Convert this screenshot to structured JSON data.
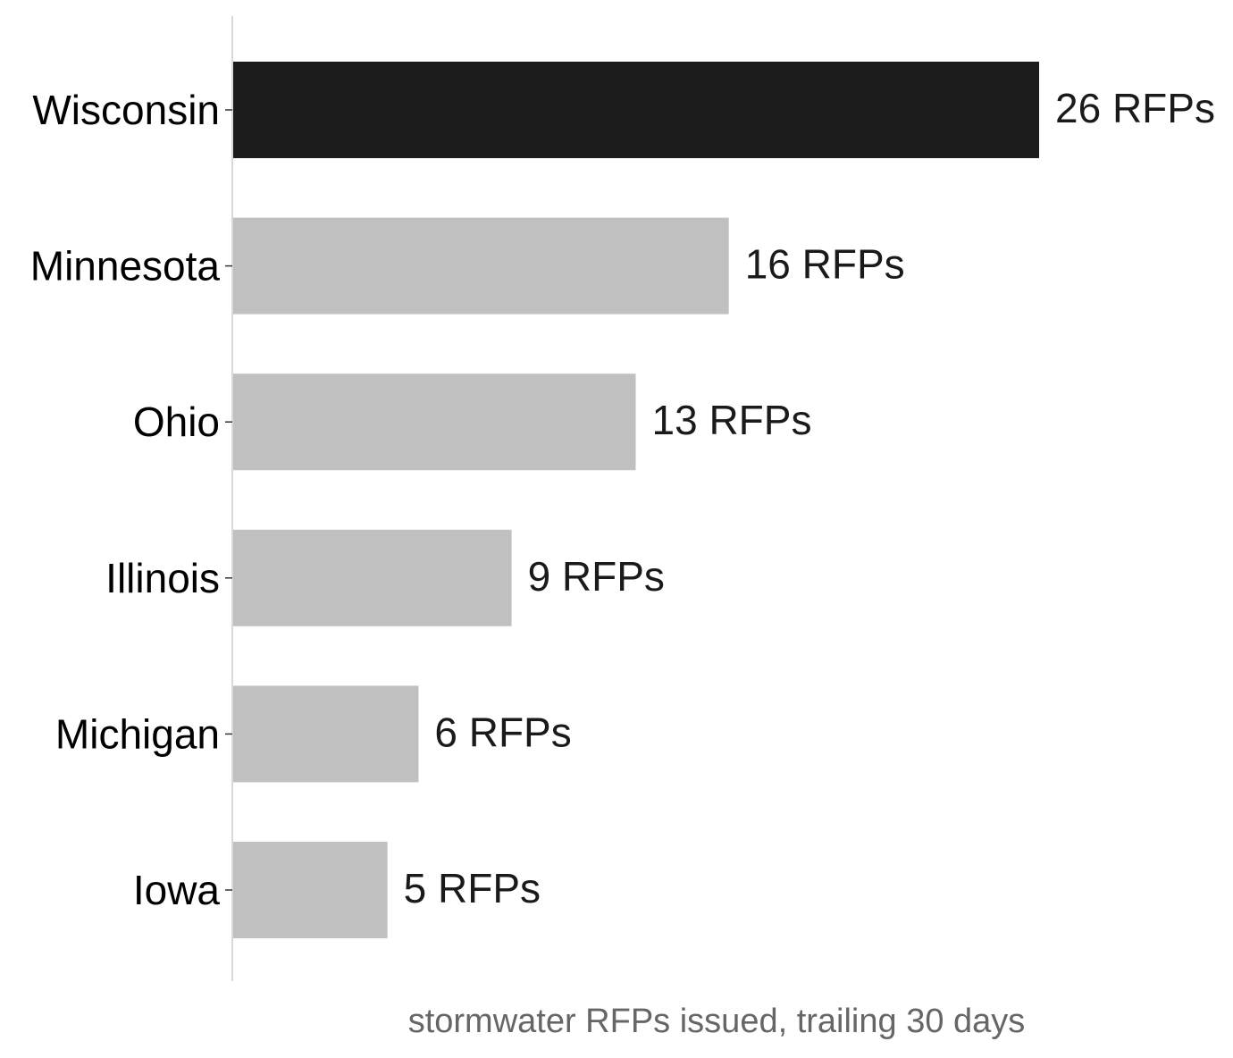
{
  "chart_data": {
    "type": "bar",
    "orientation": "horizontal",
    "categories": [
      "Wisconsin",
      "Minnesota",
      "Ohio",
      "Illinois",
      "Michigan",
      "Iowa"
    ],
    "values": [
      26,
      16,
      13,
      9,
      6,
      5
    ],
    "value_labels": [
      "26 RFPs",
      "16 RFPs",
      "13 RFPs",
      "9 RFPs",
      "6 RFPs",
      "5 RFPs"
    ],
    "xlabel": "stormwater RFPs issued, trailing 30 days",
    "ylabel": "",
    "xlim": [
      0,
      26
    ],
    "grid": false,
    "legend": "none",
    "colors": {
      "highlight": "#1c1c1c",
      "default": "#c0c0c0",
      "axis": "#d9d9d9",
      "tick": "#333333"
    },
    "highlight_index": 0
  }
}
